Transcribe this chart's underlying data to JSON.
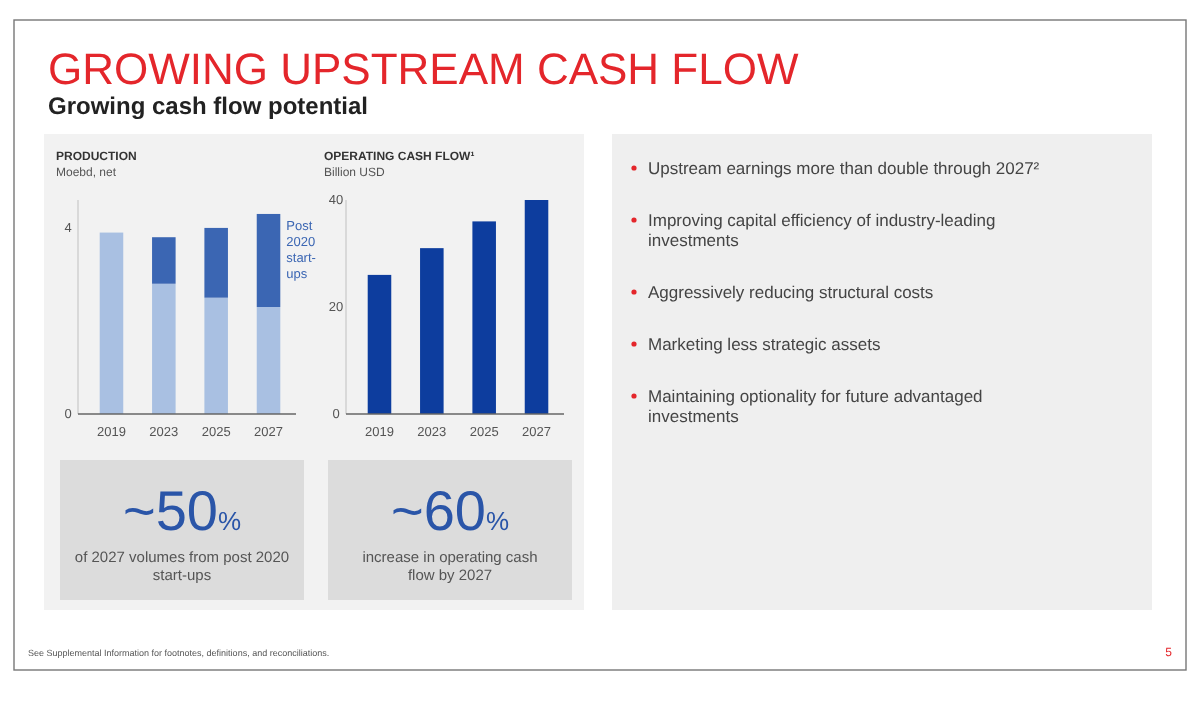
{
  "chart_data": [
    {
      "type": "other",
      "title": "GROWING UPSTREAM CASH FLOW",
      "subtitle": "Growing cash flow potential",
      "annotations": [
        "Upstream earnings more than double through 2027²",
        "Improving capital efficiency of industry-leading investments",
        "Aggressively reducing structural costs",
        "Marketing less strategic assets",
        "Maintaining optionality for future advantaged investments",
        "See Supplemental Information for footnotes, definitions, and reconciliations.",
        "5"
      ]
    },
    {
      "type": "bar",
      "title": "PRODUCTION",
      "subtitle": "Moebd, net",
      "categories": [
        "2019",
        "2023",
        "2025",
        "2027"
      ],
      "stacked": true,
      "ylim": [
        0,
        4.6
      ],
      "yticks": [
        0,
        4
      ],
      "series": [
        {
          "color": "#a9c0e2",
          "values": [
            3.9,
            2.8,
            2.5,
            2.3
          ]
        },
        {
          "name": "Post 2020 start-ups",
          "color": "#3b66b3",
          "values": [
            null,
            1.0,
            1.5,
            2.0
          ]
        }
      ],
      "annotations": [
        "~50%",
        "of 2027 volumes from post 2020 start-ups"
      ]
    },
    {
      "type": "bar",
      "title": "OPERATING CASH FLOW¹",
      "subtitle": "Billion USD",
      "categories": [
        "2019",
        "2023",
        "2025",
        "2027"
      ],
      "ylim": [
        0,
        40
      ],
      "yticks": [
        0,
        20,
        40
      ],
      "series": [
        {
          "color": "#0d3d9e",
          "values": [
            26,
            31,
            36,
            40
          ]
        }
      ],
      "annotations": [
        "~60%",
        "increase in operating cash flow by 2027"
      ]
    }
  ]
}
